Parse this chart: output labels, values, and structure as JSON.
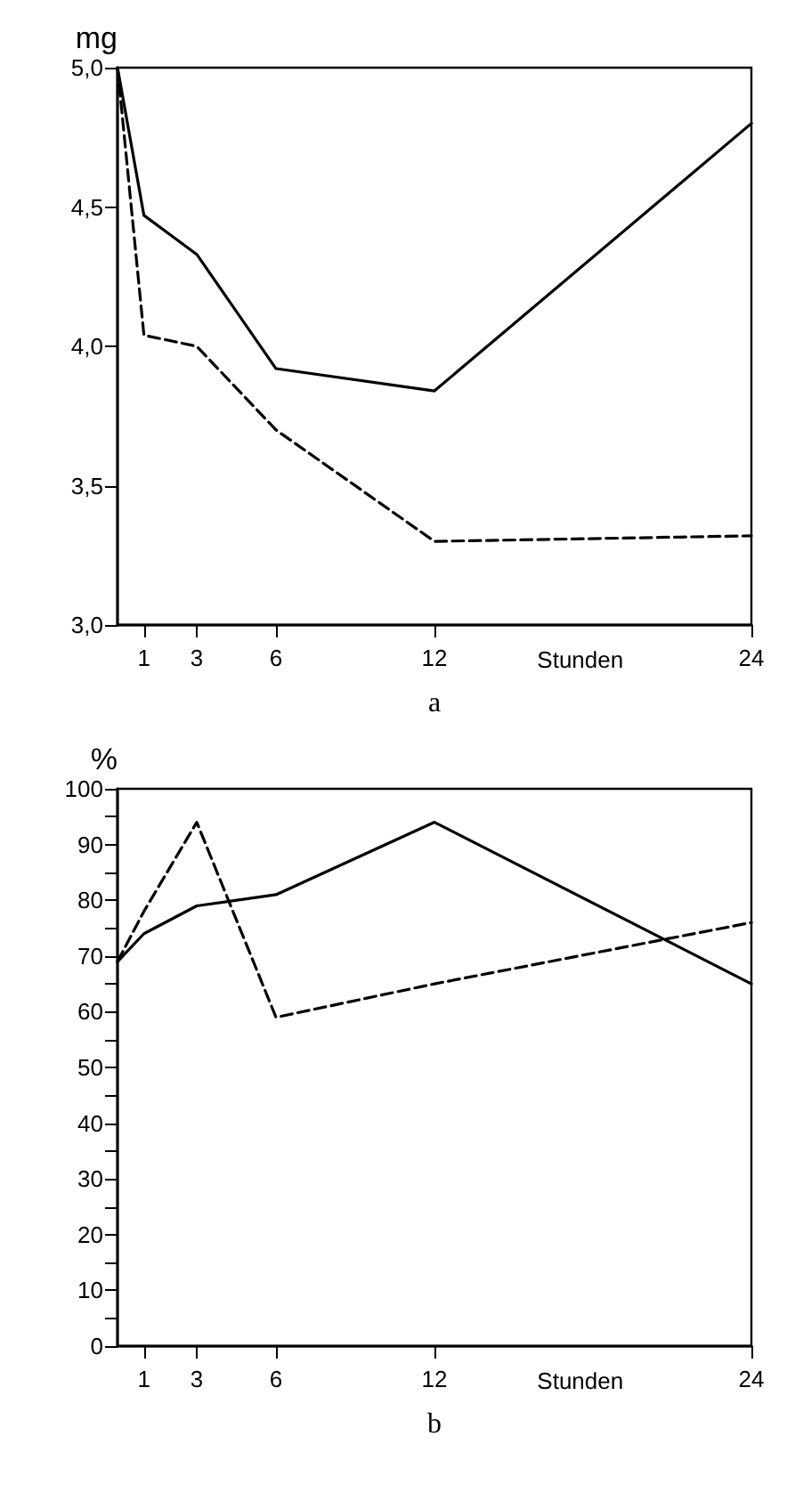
{
  "chart_data": [
    {
      "type": "line",
      "ylabel": "mg",
      "xlabel": "Stunden",
      "annotations": [
        "a"
      ],
      "xlim": [
        0,
        24
      ],
      "xticks": [
        1,
        3,
        6,
        12,
        24
      ],
      "ylim": [
        3,
        5
      ],
      "yticks": [
        {
          "value": 3,
          "label": "3,0"
        },
        {
          "value": 3.5,
          "label": "3,5"
        },
        {
          "value": 4,
          "label": "4,0"
        },
        {
          "value": 4.5,
          "label": "4,5"
        },
        {
          "value": 5,
          "label": "5,0"
        }
      ],
      "grid": false,
      "marker": "none",
      "x": [
        0,
        1,
        3,
        6,
        12,
        24
      ],
      "series": [
        {
          "color": "#000000",
          "line_style": "solid",
          "values": [
            5.0,
            4.47,
            4.33,
            3.92,
            3.84,
            4.8
          ]
        },
        {
          "color": "#000000",
          "line_style": "dashed",
          "values": [
            5.0,
            4.04,
            4.0,
            3.7,
            3.3,
            3.32
          ]
        }
      ]
    },
    {
      "type": "line",
      "ylabel": "%",
      "xlabel": "Stunden",
      "annotations": [
        "b"
      ],
      "xlim": [
        0,
        24
      ],
      "xticks": [
        1,
        3,
        6,
        12,
        24
      ],
      "ylim": [
        0,
        100
      ],
      "yticks": [
        0,
        {
          "value": 5,
          "label": null
        },
        10,
        {
          "value": 15,
          "label": null
        },
        20,
        {
          "value": 25,
          "label": null
        },
        30,
        {
          "value": 35,
          "label": null
        },
        40,
        {
          "value": 45,
          "label": null
        },
        50,
        {
          "value": 55,
          "label": null
        },
        60,
        {
          "value": 65,
          "label": null
        },
        70,
        {
          "value": 75,
          "label": null
        },
        80,
        {
          "value": 85,
          "label": null
        },
        90,
        {
          "value": 95,
          "label": null
        },
        100
      ],
      "grid": false,
      "marker": "none",
      "x": [
        0,
        1,
        3,
        6,
        12,
        24
      ],
      "series": [
        {
          "color": "#000000",
          "line_style": "solid",
          "values": [
            69,
            74,
            79,
            81,
            94,
            65
          ]
        },
        {
          "color": "#000000",
          "line_style": "dashed",
          "values": [
            69,
            78,
            94,
            59,
            65,
            76
          ]
        }
      ]
    }
  ]
}
